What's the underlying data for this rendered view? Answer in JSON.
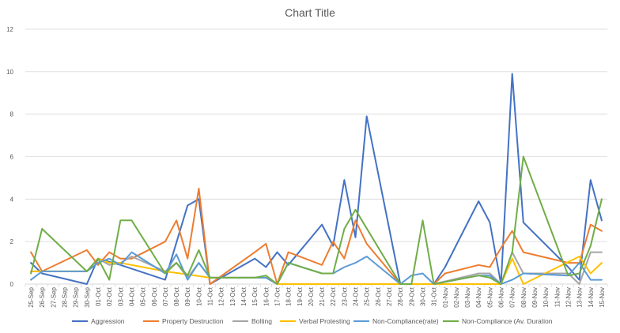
{
  "chart_data": {
    "type": "line",
    "title": "Chart Title",
    "xlabel": "",
    "ylabel": "",
    "ylim": [
      0,
      12
    ],
    "yticks": [
      0,
      2,
      4,
      6,
      8,
      10,
      12
    ],
    "grid": true,
    "legend_position": "bottom",
    "categories": [
      "25-Sep",
      "26-Sep",
      "27-Sep",
      "28-Sep",
      "29-Sep",
      "30-Sep",
      "01-Oct",
      "02-Oct",
      "03-Oct",
      "04-Oct",
      "05-Oct",
      "06-Oct",
      "07-Oct",
      "08-Oct",
      "09-Oct",
      "10-Oct",
      "11-Oct",
      "12-Oct",
      "13-Oct",
      "14-Oct",
      "15-Oct",
      "16-Oct",
      "17-Oct",
      "18-Oct",
      "19-Oct",
      "20-Oct",
      "21-Oct",
      "22-Oct",
      "23-Oct",
      "24-Oct",
      "25-Oct",
      "26-Oct",
      "27-Oct",
      "28-Oct",
      "29-Oct",
      "30-Oct",
      "31-Oct",
      "01-Nov",
      "02-Nov",
      "03-Nov",
      "04-Nov",
      "05-Nov",
      "06-Nov",
      "07-Nov",
      "08-Nov",
      "09-Nov",
      "10-Nov",
      "11-Nov",
      "12-Nov",
      "13-Nov",
      "14-Nov",
      "15-Nov"
    ],
    "series": [
      {
        "name": "Aggression",
        "color": "#4472c4",
        "values": [
          {
            "x": "25-Sep",
            "y": 1.0
          },
          {
            "x": "26-Sep",
            "y": 0.5
          },
          {
            "x": "30-Sep",
            "y": 0.0
          },
          {
            "x": "01-Oct",
            "y": 1.2
          },
          {
            "x": "03-Oct",
            "y": 0.9
          },
          {
            "x": "07-Oct",
            "y": 0.2
          },
          {
            "x": "09-Oct",
            "y": 3.7
          },
          {
            "x": "10-Oct",
            "y": 4.0
          },
          {
            "x": "11-Oct",
            "y": 0.0
          },
          {
            "x": "15-Oct",
            "y": 1.2
          },
          {
            "x": "16-Oct",
            "y": 0.8
          },
          {
            "x": "17-Oct",
            "y": 1.5
          },
          {
            "x": "18-Oct",
            "y": 0.9
          },
          {
            "x": "21-Oct",
            "y": 2.8
          },
          {
            "x": "22-Oct",
            "y": 1.8
          },
          {
            "x": "23-Oct",
            "y": 4.9
          },
          {
            "x": "24-Oct",
            "y": 2.2
          },
          {
            "x": "25-Oct",
            "y": 7.9
          },
          {
            "x": "28-Oct",
            "y": 0.0
          },
          {
            "x": "31-Oct",
            "y": 0.0
          },
          {
            "x": "01-Nov",
            "y": 0.8
          },
          {
            "x": "04-Nov",
            "y": 3.9
          },
          {
            "x": "05-Nov",
            "y": 2.9
          },
          {
            "x": "06-Nov",
            "y": 0.0
          },
          {
            "x": "07-Nov",
            "y": 9.9
          },
          {
            "x": "08-Nov",
            "y": 2.9
          },
          {
            "x": "12-Nov",
            "y": 0.8
          },
          {
            "x": "13-Nov",
            "y": 0.2
          },
          {
            "x": "14-Nov",
            "y": 4.9
          },
          {
            "x": "15-Nov",
            "y": 3.0
          }
        ]
      },
      {
        "name": "Property Destruction",
        "color": "#ed7d31",
        "values": [
          {
            "x": "25-Sep",
            "y": 1.5
          },
          {
            "x": "26-Sep",
            "y": 0.6
          },
          {
            "x": "30-Sep",
            "y": 1.6
          },
          {
            "x": "01-Oct",
            "y": 0.9
          },
          {
            "x": "02-Oct",
            "y": 1.5
          },
          {
            "x": "03-Oct",
            "y": 1.2
          },
          {
            "x": "04-Oct",
            "y": 1.2
          },
          {
            "x": "07-Oct",
            "y": 2.0
          },
          {
            "x": "08-Oct",
            "y": 3.0
          },
          {
            "x": "09-Oct",
            "y": 1.2
          },
          {
            "x": "10-Oct",
            "y": 4.5
          },
          {
            "x": "11-Oct",
            "y": 0.0
          },
          {
            "x": "15-Oct",
            "y": 1.5
          },
          {
            "x": "16-Oct",
            "y": 1.9
          },
          {
            "x": "17-Oct",
            "y": 0.0
          },
          {
            "x": "18-Oct",
            "y": 1.5
          },
          {
            "x": "21-Oct",
            "y": 0.9
          },
          {
            "x": "22-Oct",
            "y": 2.0
          },
          {
            "x": "23-Oct",
            "y": 1.2
          },
          {
            "x": "24-Oct",
            "y": 3.0
          },
          {
            "x": "25-Oct",
            "y": 1.9
          },
          {
            "x": "28-Oct",
            "y": 0.0
          },
          {
            "x": "31-Oct",
            "y": 0.0
          },
          {
            "x": "01-Nov",
            "y": 0.5
          },
          {
            "x": "04-Nov",
            "y": 0.9
          },
          {
            "x": "05-Nov",
            "y": 0.8
          },
          {
            "x": "06-Nov",
            "y": 1.7
          },
          {
            "x": "07-Nov",
            "y": 2.5
          },
          {
            "x": "08-Nov",
            "y": 1.5
          },
          {
            "x": "12-Nov",
            "y": 1.0
          },
          {
            "x": "13-Nov",
            "y": 1.0
          },
          {
            "x": "14-Nov",
            "y": 2.8
          },
          {
            "x": "15-Nov",
            "y": 2.5
          }
        ]
      },
      {
        "name": "Bolting",
        "color": "#a5a5a5",
        "values": [
          {
            "x": "25-Sep",
            "y": 0.6
          },
          {
            "x": "30-Sep",
            "y": 0.6
          },
          {
            "x": "01-Oct",
            "y": 1.2
          },
          {
            "x": "02-Oct",
            "y": 0.9
          },
          {
            "x": "03-Oct",
            "y": 1.0
          },
          {
            "x": "04-Oct",
            "y": 1.3
          },
          {
            "x": "07-Oct",
            "y": 0.6
          },
          {
            "x": "08-Oct",
            "y": 1.0
          },
          {
            "x": "09-Oct",
            "y": 0.3
          },
          {
            "x": "10-Oct",
            "y": 1.0
          },
          {
            "x": "11-Oct",
            "y": 0.3
          },
          {
            "x": "15-Oct",
            "y": 0.3
          },
          {
            "x": "16-Oct",
            "y": 0.3
          },
          {
            "x": "17-Oct",
            "y": 0.0
          },
          {
            "x": "28-Oct",
            "y": 0.0
          },
          {
            "x": "31-Oct",
            "y": 0.0
          },
          {
            "x": "04-Nov",
            "y": 0.5
          },
          {
            "x": "05-Nov",
            "y": 0.5
          },
          {
            "x": "06-Nov",
            "y": 0.0
          },
          {
            "x": "07-Nov",
            "y": 1.5
          },
          {
            "x": "08-Nov",
            "y": 0.5
          },
          {
            "x": "12-Nov",
            "y": 0.5
          },
          {
            "x": "13-Nov",
            "y": 0.0
          },
          {
            "x": "14-Nov",
            "y": 1.5
          },
          {
            "x": "15-Nov",
            "y": 1.5
          }
        ]
      },
      {
        "name": "Verbal Protesting",
        "color": "#ffc000",
        "values": [
          {
            "x": "25-Sep",
            "y": 0.6
          },
          {
            "x": "30-Sep",
            "y": 0.6
          },
          {
            "x": "01-Oct",
            "y": 1.2
          },
          {
            "x": "02-Oct",
            "y": 1.0
          },
          {
            "x": "03-Oct",
            "y": 1.0
          },
          {
            "x": "07-Oct",
            "y": 0.6
          },
          {
            "x": "11-Oct",
            "y": 0.3
          },
          {
            "x": "16-Oct",
            "y": 0.3
          },
          {
            "x": "17-Oct",
            "y": 0.0
          },
          {
            "x": "28-Oct",
            "y": 0.0
          },
          {
            "x": "31-Oct",
            "y": 0.0
          },
          {
            "x": "05-Nov",
            "y": 0.0
          },
          {
            "x": "06-Nov",
            "y": 0.0
          },
          {
            "x": "07-Nov",
            "y": 1.2
          },
          {
            "x": "08-Nov",
            "y": 0.0
          },
          {
            "x": "13-Nov",
            "y": 1.3
          },
          {
            "x": "14-Nov",
            "y": 0.5
          },
          {
            "x": "15-Nov",
            "y": 1.0
          }
        ]
      },
      {
        "name": "Non-Compliance(rate)",
        "color": "#5b9bd5",
        "values": [
          {
            "x": "25-Sep",
            "y": 0.2
          },
          {
            "x": "26-Sep",
            "y": 0.6
          },
          {
            "x": "30-Sep",
            "y": 0.6
          },
          {
            "x": "01-Oct",
            "y": 1.0
          },
          {
            "x": "02-Oct",
            "y": 1.2
          },
          {
            "x": "03-Oct",
            "y": 0.9
          },
          {
            "x": "04-Oct",
            "y": 1.5
          },
          {
            "x": "07-Oct",
            "y": 0.5
          },
          {
            "x": "08-Oct",
            "y": 1.4
          },
          {
            "x": "09-Oct",
            "y": 0.2
          },
          {
            "x": "10-Oct",
            "y": 1.0
          },
          {
            "x": "11-Oct",
            "y": 0.3
          },
          {
            "x": "16-Oct",
            "y": 0.3
          },
          {
            "x": "17-Oct",
            "y": 0.0
          },
          {
            "x": "18-Oct",
            "y": 1.0
          },
          {
            "x": "21-Oct",
            "y": 0.5
          },
          {
            "x": "22-Oct",
            "y": 0.5
          },
          {
            "x": "23-Oct",
            "y": 0.8
          },
          {
            "x": "24-Oct",
            "y": 1.0
          },
          {
            "x": "25-Oct",
            "y": 1.3
          },
          {
            "x": "28-Oct",
            "y": 0.0
          },
          {
            "x": "29-Oct",
            "y": 0.4
          },
          {
            "x": "30-Oct",
            "y": 0.5
          },
          {
            "x": "31-Oct",
            "y": 0.0
          },
          {
            "x": "04-Nov",
            "y": 0.4
          },
          {
            "x": "05-Nov",
            "y": 0.4
          },
          {
            "x": "06-Nov",
            "y": 0.0
          },
          {
            "x": "07-Nov",
            "y": 0.2
          },
          {
            "x": "08-Nov",
            "y": 0.5
          },
          {
            "x": "12-Nov",
            "y": 0.4
          },
          {
            "x": "13-Nov",
            "y": 1.0
          },
          {
            "x": "14-Nov",
            "y": 0.2
          },
          {
            "x": "15-Nov",
            "y": 0.2
          }
        ]
      },
      {
        "name": "Non-Compliance (Av. Duration",
        "color": "#70ad47",
        "values": [
          {
            "x": "25-Sep",
            "y": 0.5
          },
          {
            "x": "26-Sep",
            "y": 2.6
          },
          {
            "x": "30-Sep",
            "y": 0.6
          },
          {
            "x": "01-Oct",
            "y": 1.2
          },
          {
            "x": "02-Oct",
            "y": 0.2
          },
          {
            "x": "03-Oct",
            "y": 3.0
          },
          {
            "x": "04-Oct",
            "y": 3.0
          },
          {
            "x": "07-Oct",
            "y": 0.5
          },
          {
            "x": "08-Oct",
            "y": 1.0
          },
          {
            "x": "09-Oct",
            "y": 0.4
          },
          {
            "x": "10-Oct",
            "y": 1.6
          },
          {
            "x": "11-Oct",
            "y": 0.3
          },
          {
            "x": "15-Oct",
            "y": 0.3
          },
          {
            "x": "16-Oct",
            "y": 0.4
          },
          {
            "x": "17-Oct",
            "y": 0.0
          },
          {
            "x": "18-Oct",
            "y": 1.0
          },
          {
            "x": "21-Oct",
            "y": 0.5
          },
          {
            "x": "22-Oct",
            "y": 0.5
          },
          {
            "x": "23-Oct",
            "y": 2.6
          },
          {
            "x": "24-Oct",
            "y": 3.5
          },
          {
            "x": "28-Oct",
            "y": 0.0
          },
          {
            "x": "29-Oct",
            "y": 0.0
          },
          {
            "x": "30-Oct",
            "y": 3.0
          },
          {
            "x": "31-Oct",
            "y": 0.0
          },
          {
            "x": "04-Nov",
            "y": 0.4
          },
          {
            "x": "05-Nov",
            "y": 0.3
          },
          {
            "x": "06-Nov",
            "y": 0.0
          },
          {
            "x": "07-Nov",
            "y": 1.5
          },
          {
            "x": "08-Nov",
            "y": 6.0
          },
          {
            "x": "11-Nov",
            "y": 1.8
          },
          {
            "x": "12-Nov",
            "y": 0.4
          },
          {
            "x": "13-Nov",
            "y": 0.5
          },
          {
            "x": "14-Nov",
            "y": 1.8
          },
          {
            "x": "15-Nov",
            "y": 4.0
          }
        ]
      }
    ]
  }
}
